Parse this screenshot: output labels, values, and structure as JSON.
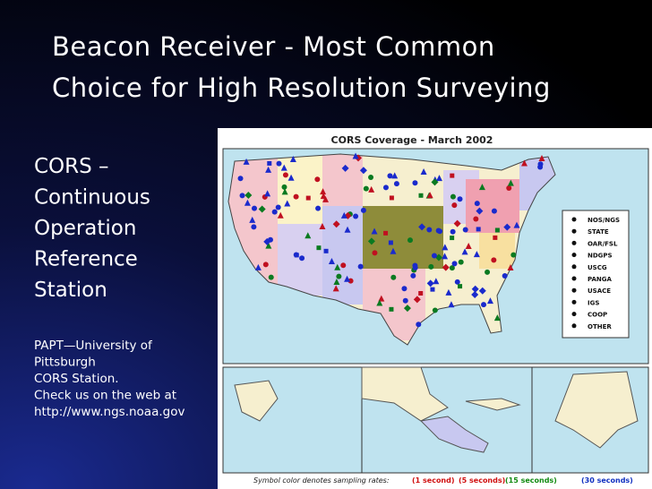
{
  "slide": {
    "title": [
      "Beacon Receiver - Most Common",
      "Choice for High Resolution Surveying"
    ],
    "heading": [
      "CORS –",
      "Continuous",
      "Operation",
      "Reference",
      "Station"
    ],
    "note": [
      "PAPT—University of",
      "Pittsburgh",
      "CORS Station.",
      "Check us on the web at",
      "http://www.ngs.noaa.gov"
    ],
    "map": {
      "title": "CORS Coverage - March 2002",
      "legend": [
        "NOS/NGS",
        "STATE",
        "OAR/FSL",
        "NDGPS",
        "USCG",
        "PANGA",
        "USACE",
        "IGS",
        "COOP",
        "OTHER"
      ],
      "footer": "Symbol color denotes sampling rates:",
      "rates": [
        {
          "label": "(1 second)",
          "color": "#d01010"
        },
        {
          "label": "(5 seconds)",
          "color": "#d01010"
        },
        {
          "label": "(15 seconds)",
          "color": "#108a10"
        },
        {
          "label": "(30 seconds)",
          "color": "#1030c0"
        }
      ]
    }
  }
}
